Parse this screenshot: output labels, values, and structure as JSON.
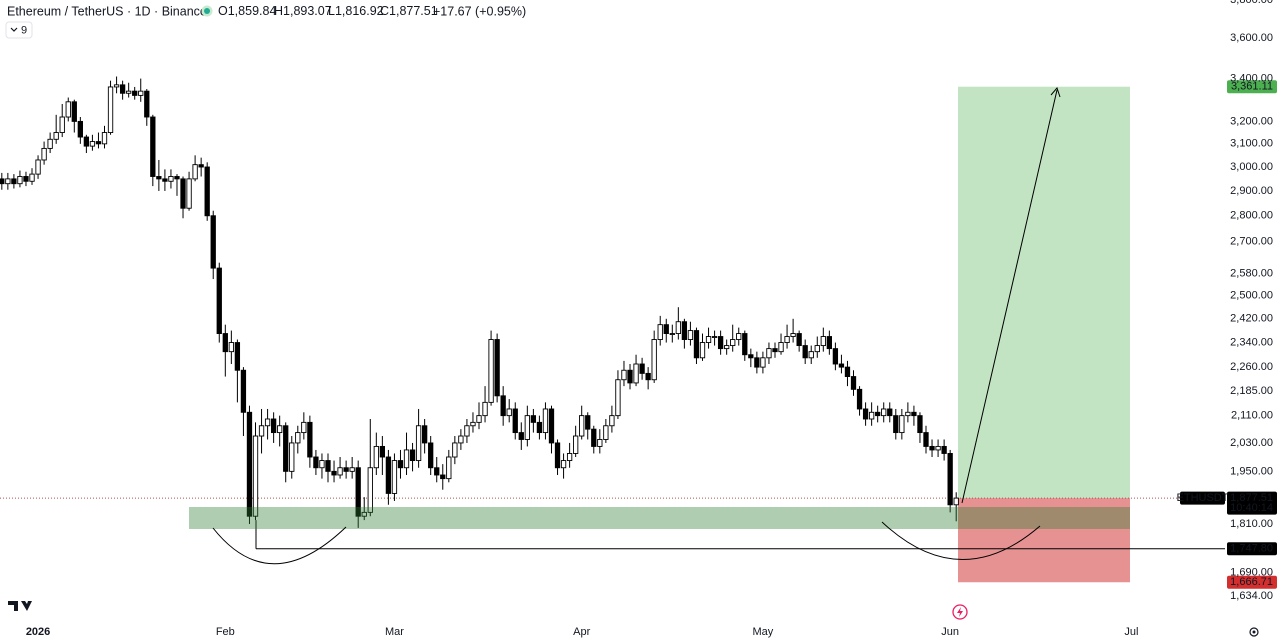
{
  "header": {
    "title": "Ethereum / TetherUS · 1D · Binance",
    "o_key": "O",
    "o_value": "1,859.84",
    "h_key": "H",
    "h_value": "1,893.07",
    "l_key": "L",
    "l_value": "1,816.92",
    "c_key": "C",
    "c_value": "1,877.51",
    "change": "+17.67 (+0.95%)",
    "indicator_count": "9"
  },
  "chart_data": {
    "type": "candlestick",
    "log_scale": true,
    "up_color": "#ffffff",
    "down_color": "#000000",
    "border_color": "#000000",
    "open": [
      2950,
      2930,
      2950,
      2930,
      2960,
      2940,
      2970,
      3030,
      3080,
      3120,
      3150,
      3220,
      3290,
      3200,
      3130,
      3090,
      3110,
      3100,
      3150,
      3360,
      3370,
      3330,
      3340,
      3320,
      3340,
      3220,
      2960,
      2950,
      2940,
      2960,
      2950,
      2830,
      2950,
      3010,
      3000,
      2800,
      2600,
      2370,
      2310,
      2340,
      2250,
      2120,
      1830,
      2050,
      2080,
      2100,
      2060,
      2080,
      1950,
      2030,
      2060,
      2090,
      1990,
      1960,
      1980,
      1950,
      1940,
      1960,
      1950,
      1960,
      1830,
      1840,
      1960,
      2020,
      1990,
      1890,
      1980,
      1960,
      2010,
      1980,
      2080,
      2030,
      1960,
      1940,
      1930,
      1990,
      2030,
      2050,
      2080,
      2090,
      2110,
      2150,
      2350,
      2170,
      2110,
      2130,
      2060,
      2040,
      2110,
      2090,
      2060,
      2130,
      2030,
      1960,
      1980,
      2000,
      2050,
      2110,
      2070,
      2020,
      2040,
      2080,
      2110,
      2220,
      2250,
      2210,
      2270,
      2240,
      2220,
      2350,
      2400,
      2370,
      2370,
      2410,
      2350,
      2380,
      2290,
      2340,
      2360,
      2360,
      2320,
      2330,
      2350,
      2370,
      2300,
      2290,
      2260,
      2290,
      2320,
      2310,
      2340,
      2360,
      2370,
      2330,
      2290,
      2310,
      2330,
      2360,
      2320,
      2270,
      2260,
      2230,
      2190,
      2130,
      2100,
      2120,
      2110,
      2130,
      2110,
      2060,
      2110,
      2120,
      2110,
      2060,
      2020,
      2010,
      2020,
      2000,
      1859.84
    ],
    "high": [
      2975,
      2975,
      2970,
      2985,
      2980,
      2995,
      3050,
      3110,
      3150,
      3230,
      3280,
      3310,
      3300,
      3220,
      3140,
      3140,
      3150,
      3180,
      3390,
      3410,
      3390,
      3380,
      3360,
      3400,
      3350,
      3230,
      3030,
      2990,
      2990,
      2970,
      2960,
      2980,
      3050,
      3040,
      3020,
      2820,
      2620,
      2400,
      2380,
      2350,
      2260,
      2140,
      2090,
      2130,
      2130,
      2120,
      2110,
      2090,
      2050,
      2080,
      2120,
      2110,
      2010,
      2000,
      2000,
      1980,
      1990,
      1980,
      1990,
      1980,
      1880,
      2100,
      2060,
      2050,
      2010,
      2000,
      2010,
      2060,
      2030,
      2130,
      2100,
      2050,
      1990,
      1970,
      2010,
      2050,
      2070,
      2100,
      2120,
      2150,
      2200,
      2380,
      2370,
      2200,
      2160,
      2150,
      2090,
      2140,
      2130,
      2110,
      2150,
      2140,
      2040,
      2000,
      2030,
      2080,
      2140,
      2120,
      2080,
      2070,
      2100,
      2140,
      2250,
      2280,
      2270,
      2300,
      2290,
      2260,
      2380,
      2430,
      2420,
      2400,
      2460,
      2420,
      2410,
      2390,
      2370,
      2390,
      2380,
      2380,
      2350,
      2400,
      2390,
      2380,
      2320,
      2310,
      2310,
      2340,
      2340,
      2370,
      2400,
      2420,
      2380,
      2350,
      2330,
      2360,
      2390,
      2380,
      2340,
      2300,
      2280,
      2250,
      2200,
      2150,
      2150,
      2140,
      2150,
      2150,
      2130,
      2130,
      2150,
      2140,
      2120,
      2080,
      2040,
      2040,
      2040,
      2010,
      1893.07
    ],
    "low": [
      2905,
      2905,
      2910,
      2915,
      2920,
      2925,
      2950,
      3010,
      3060,
      3100,
      3130,
      3200,
      3150,
      3100,
      3060,
      3070,
      3080,
      3080,
      3140,
      3330,
      3300,
      3310,
      3300,
      3290,
      3180,
      2920,
      2900,
      2900,
      2910,
      2880,
      2790,
      2820,
      2940,
      2960,
      2780,
      2560,
      2340,
      2230,
      2270,
      2150,
      2050,
      1810,
      1820,
      2000,
      2040,
      2030,
      2020,
      1920,
      1930,
      2000,
      2040,
      1960,
      1940,
      1930,
      1920,
      1920,
      1930,
      1930,
      1930,
      1800,
      1820,
      1830,
      1940,
      1940,
      1860,
      1870,
      1930,
      1940,
      1950,
      1960,
      2000,
      1940,
      1920,
      1900,
      1920,
      1970,
      2010,
      2030,
      2060,
      2070,
      2090,
      2140,
      2150,
      2080,
      2090,
      2040,
      2010,
      2020,
      2060,
      2040,
      2040,
      2000,
      1940,
      1930,
      1960,
      1990,
      2040,
      2040,
      2000,
      2000,
      2030,
      2060,
      2100,
      2200,
      2190,
      2200,
      2220,
      2190,
      2210,
      2330,
      2340,
      2340,
      2350,
      2320,
      2330,
      2270,
      2280,
      2320,
      2330,
      2300,
      2300,
      2310,
      2330,
      2280,
      2260,
      2240,
      2240,
      2270,
      2290,
      2300,
      2320,
      2340,
      2310,
      2270,
      2270,
      2290,
      2310,
      2300,
      2250,
      2240,
      2200,
      2170,
      2110,
      2080,
      2080,
      2090,
      2090,
      2090,
      2040,
      2040,
      2090,
      2080,
      2030,
      2000,
      1990,
      1990,
      1980,
      1840,
      1816.92
    ],
    "close": [
      2930,
      2950,
      2930,
      2960,
      2940,
      2970,
      3030,
      3080,
      3120,
      3150,
      3220,
      3290,
      3200,
      3130,
      3090,
      3110,
      3100,
      3150,
      3360,
      3370,
      3330,
      3340,
      3320,
      3340,
      3220,
      2960,
      2950,
      2940,
      2960,
      2950,
      2830,
      2950,
      3010,
      3000,
      2800,
      2600,
      2370,
      2310,
      2340,
      2250,
      2120,
      1830,
      2050,
      2080,
      2100,
      2060,
      2080,
      1950,
      2030,
      2060,
      2090,
      1990,
      1960,
      1980,
      1950,
      1940,
      1960,
      1950,
      1960,
      1830,
      1840,
      1960,
      2020,
      1990,
      1890,
      1980,
      1960,
      2010,
      1980,
      2080,
      2030,
      1960,
      1940,
      1930,
      1990,
      2030,
      2050,
      2080,
      2090,
      2110,
      2150,
      2350,
      2170,
      2110,
      2130,
      2060,
      2040,
      2110,
      2090,
      2060,
      2130,
      2030,
      1960,
      1980,
      2000,
      2050,
      2110,
      2070,
      2020,
      2040,
      2080,
      2110,
      2220,
      2250,
      2210,
      2270,
      2240,
      2220,
      2350,
      2400,
      2370,
      2370,
      2410,
      2350,
      2380,
      2290,
      2340,
      2360,
      2360,
      2320,
      2330,
      2350,
      2370,
      2300,
      2290,
      2260,
      2290,
      2320,
      2310,
      2340,
      2360,
      2370,
      2330,
      2290,
      2310,
      2330,
      2360,
      2320,
      2270,
      2260,
      2230,
      2190,
      2130,
      2100,
      2120,
      2110,
      2130,
      2110,
      2060,
      2110,
      2120,
      2110,
      2060,
      2020,
      2010,
      2020,
      2000,
      1859.84,
      1877.51
    ],
    "xlim": [
      -0.3,
      202.5
    ],
    "xticks": [
      {
        "value": 6,
        "label": "2026"
      },
      {
        "value": 37,
        "label": "Feb"
      },
      {
        "value": 65,
        "label": "Mar"
      },
      {
        "value": 96,
        "label": "Apr"
      },
      {
        "value": 126,
        "label": "May"
      },
      {
        "value": 157,
        "label": "Jun"
      },
      {
        "value": 187,
        "label": "Jul"
      }
    ],
    "ylim": [
      1580,
      3800
    ],
    "yticks": [
      {
        "value": 3800,
        "label": "3,800.00"
      },
      {
        "value": 3600,
        "label": "3,600.00"
      },
      {
        "value": 3400,
        "label": "3,400.00"
      },
      {
        "value": 3200,
        "label": "3,200.00"
      },
      {
        "value": 3100,
        "label": "3,100.00"
      },
      {
        "value": 3000,
        "label": "3,000.00"
      },
      {
        "value": 2900,
        "label": "2,900.00"
      },
      {
        "value": 2800,
        "label": "2,800.00"
      },
      {
        "value": 2700,
        "label": "2,700.00"
      },
      {
        "value": 2580,
        "label": "2,580.00"
      },
      {
        "value": 2500,
        "label": "2,500.00"
      },
      {
        "value": 2420,
        "label": "2,420.00"
      },
      {
        "value": 2340,
        "label": "2,340.00"
      },
      {
        "value": 2260,
        "label": "2,260.00"
      },
      {
        "value": 2185,
        "label": "2,185.00"
      },
      {
        "value": 2110,
        "label": "2,110.00"
      },
      {
        "value": 2030,
        "label": "2,030.00"
      },
      {
        "value": 1950,
        "label": "1,950.00"
      },
      {
        "value": 1810,
        "label": "1,810.00"
      },
      {
        "value": 1690,
        "label": "1,690.00"
      },
      {
        "value": 1634,
        "label": "1,634.00"
      }
    ],
    "last_price": {
      "value": 1877.51,
      "label": "1,877.51"
    },
    "symbol": "ETHUSDT",
    "countdown": "10:40:14",
    "target": {
      "value": 3361.11,
      "label": "3,361.11"
    },
    "stop": {
      "value": 1666.71,
      "label": "1,666.71"
    },
    "level": {
      "value": 1747.8,
      "label": "1,747.80"
    }
  }
}
